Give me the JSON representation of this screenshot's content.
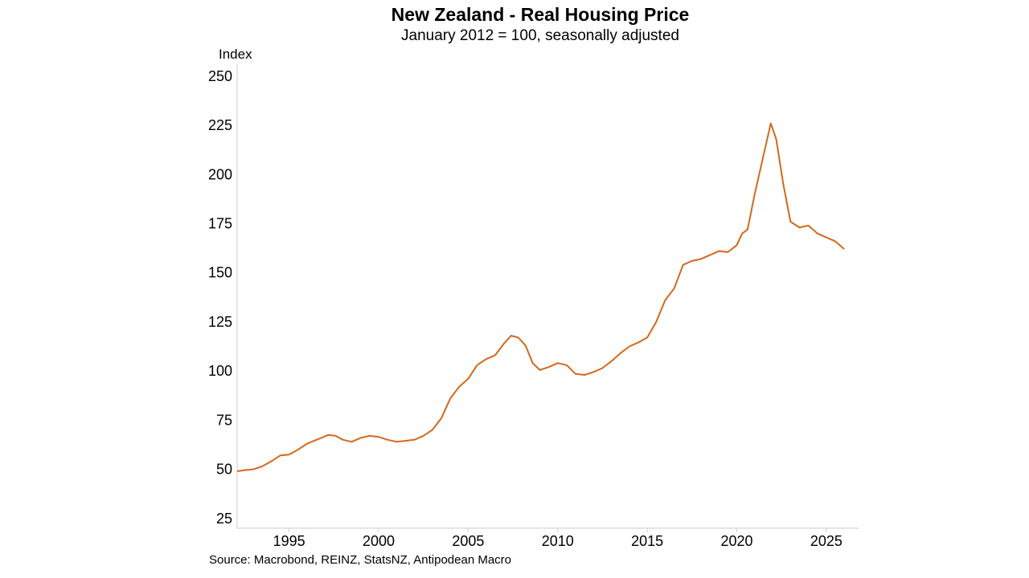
{
  "chart_data": {
    "type": "line",
    "title": "New Zealand - Real Housing Price",
    "subtitle": "January 2012 = 100, seasonally adjusted",
    "ylabel": "Index",
    "xlabel": "",
    "source": "Source: Macrobond, REINZ, StatsNZ, Antipodean Macro",
    "ylim": [
      20,
      252
    ],
    "xlim": [
      1992.1,
      2026.8
    ],
    "yticks": [
      25,
      50,
      75,
      100,
      125,
      150,
      175,
      200,
      225,
      250
    ],
    "xticks": [
      1995,
      2000,
      2005,
      2010,
      2015,
      2020,
      2025
    ],
    "grid": false,
    "legend": "none",
    "line_color": "#d2691e",
    "series": [
      {
        "x": [
          1992.1,
          1992.5,
          1993.0,
          1993.5,
          1994.0,
          1994.5,
          1995.0,
          1995.5,
          1996.0,
          1996.4,
          1996.8,
          1997.2,
          1997.6,
          1998.0,
          1998.5,
          1999.0,
          1999.5,
          2000.0,
          2000.5,
          2001.0,
          2001.5,
          2002.0,
          2002.5,
          2003.0,
          2003.5,
          2004.0,
          2004.5,
          2005.0,
          2005.5,
          2006.0,
          2006.5,
          2007.0,
          2007.4,
          2007.8,
          2008.2,
          2008.6,
          2009.0,
          2009.5,
          2010.0,
          2010.5,
          2011.0,
          2011.5,
          2012.0,
          2012.5,
          2013.0,
          2013.5,
          2014.0,
          2014.5,
          2015.0,
          2015.5,
          2016.0,
          2016.5,
          2017.0,
          2017.5,
          2018.0,
          2018.5,
          2019.0,
          2019.5,
          2020.0,
          2020.3,
          2020.6,
          2021.0,
          2021.5,
          2021.9,
          2022.2,
          2022.6,
          2023.0,
          2023.5,
          2024.0,
          2024.5,
          2025.0,
          2025.5,
          2026.0
        ],
        "values": [
          49,
          49.5,
          50,
          51.5,
          54,
          57,
          57.5,
          60,
          63,
          64.5,
          66,
          67.5,
          67,
          65,
          64,
          66,
          67,
          66.5,
          65,
          64,
          64.5,
          65,
          67,
          70,
          76,
          86,
          92,
          96,
          103,
          106,
          108,
          114,
          118,
          117,
          113,
          104,
          100.5,
          102,
          104,
          103,
          98.5,
          98,
          99.5,
          101.5,
          105,
          109,
          112.5,
          114.5,
          117,
          125,
          136,
          142,
          154,
          156,
          157,
          159,
          161,
          160.5,
          164,
          170,
          172,
          190,
          210,
          226,
          218,
          195,
          176,
          173,
          174,
          170,
          168,
          166,
          162
        ]
      }
    ]
  }
}
